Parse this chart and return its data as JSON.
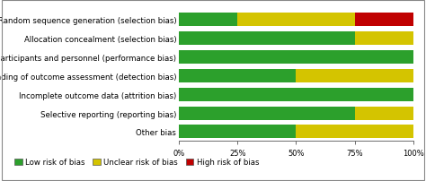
{
  "categories": [
    "Random sequence generation (selection bias)",
    "Allocation concealment (selection bias)",
    "Blinding of participants and personnel (performance bias)",
    "Blinding of outcome assessment (detection bias)",
    "Incomplete outcome data (attrition bias)",
    "Selective reporting (reporting bias)",
    "Other bias"
  ],
  "green": [
    25,
    75,
    100,
    50,
    100,
    75,
    50
  ],
  "yellow": [
    50,
    25,
    0,
    50,
    0,
    25,
    50
  ],
  "red": [
    25,
    0,
    0,
    0,
    0,
    0,
    0
  ],
  "color_green": "#2ca02c",
  "color_yellow": "#d4c400",
  "color_red": "#c00000",
  "color_border": "#888888",
  "background_color": "#ffffff",
  "legend_labels": [
    "Low risk of bias",
    "Unclear risk of bias",
    "High risk of bias"
  ],
  "xtick_labels": [
    "0%",
    "25%",
    "50%",
    "75%",
    "100%"
  ],
  "xtick_values": [
    0,
    25,
    50,
    75,
    100
  ],
  "bar_height": 0.72,
  "tick_fontsize": 6.0,
  "legend_fontsize": 6.2,
  "label_fontsize": 6.2
}
